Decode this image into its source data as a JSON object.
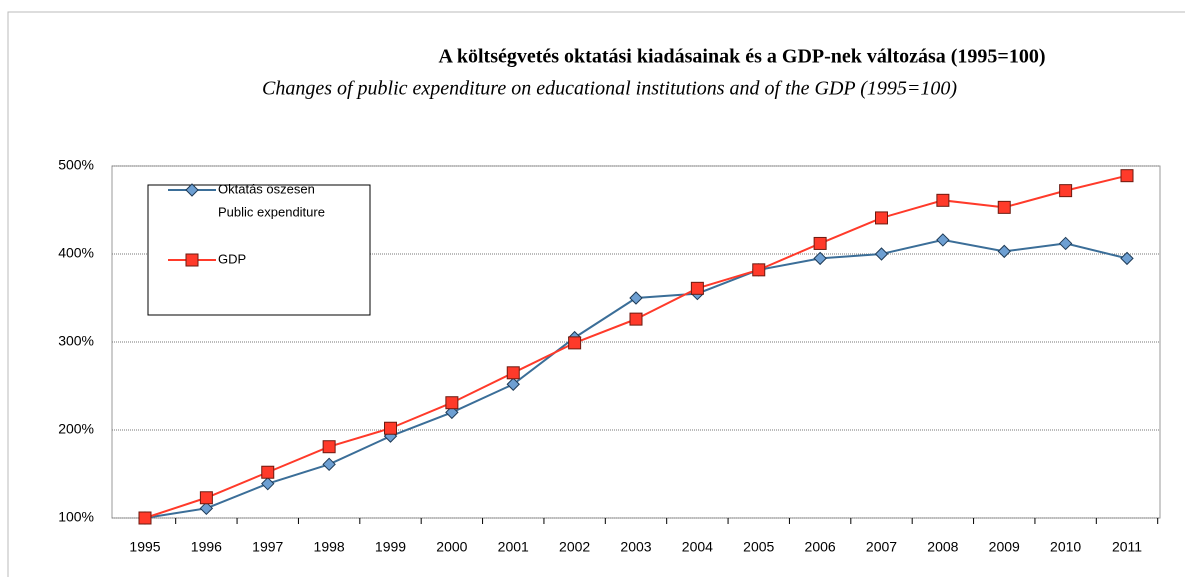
{
  "chart_data": {
    "type": "line",
    "title": "A költségvetés oktatási kiadásainak és a GDP-nek változása (1995=100)",
    "subtitle": "Changes of public expenditure on educational institutions and of the GDP (1995=100)",
    "categories": [
      "1995",
      "1996",
      "1997",
      "1998",
      "1999",
      "2000",
      "2001",
      "2002",
      "2003",
      "2004",
      "2005",
      "2006",
      "2007",
      "2008",
      "2009",
      "2010",
      "2011"
    ],
    "series": [
      {
        "name": [
          "Oktatás öszesen",
          "Public expenditure"
        ],
        "color": "#3b6e98",
        "marker_color": "#6d9fd2",
        "marker": "diamond",
        "values": [
          100,
          111,
          139,
          161,
          193,
          220,
          252,
          305,
          350,
          355,
          382,
          395,
          400,
          416,
          403,
          412,
          395
        ]
      },
      {
        "name": [
          "GDP"
        ],
        "color": "#ff3a2a",
        "marker_color": "#ff3a2a",
        "marker": "square",
        "values": [
          100,
          123,
          152,
          181,
          202,
          231,
          265,
          299,
          326,
          361,
          382,
          412,
          441,
          461,
          453,
          472,
          489
        ]
      }
    ],
    "ylim": [
      100,
      500
    ],
    "yticks": [
      {
        "value": 100,
        "label": "100%"
      },
      {
        "value": 200,
        "label": "200%"
      },
      {
        "value": 300,
        "label": "300%"
      },
      {
        "value": 400,
        "label": "400%"
      },
      {
        "value": 500,
        "label": "500%"
      }
    ],
    "grid": true,
    "legend": "top-left"
  }
}
